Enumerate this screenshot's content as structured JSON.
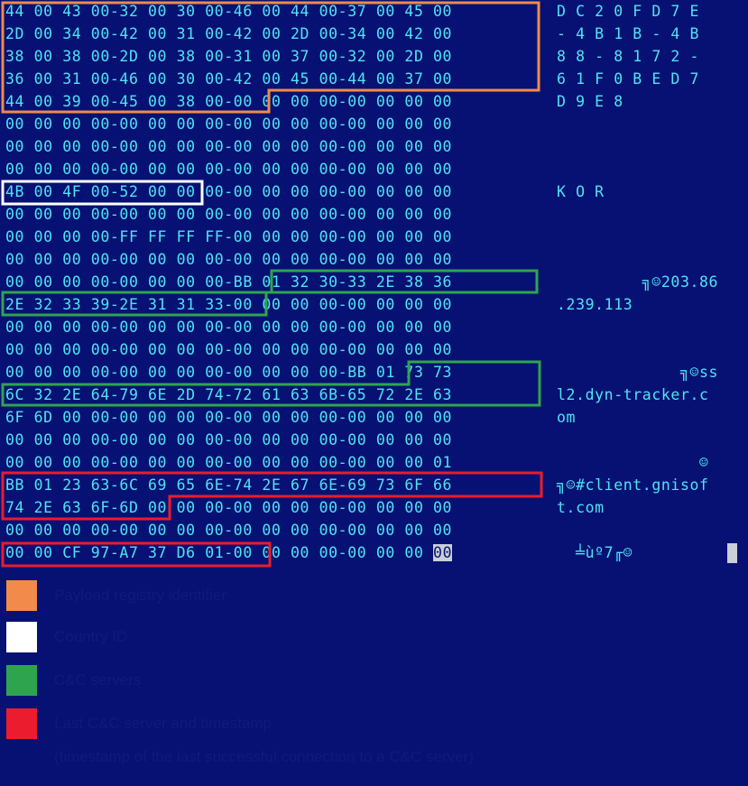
{
  "hex_rows": [
    {
      "hex": "44 00 43 00-32 00 30 00-46 00 44 00-37 00 45 00",
      "ascii": "D C 2 0 F D 7 E"
    },
    {
      "hex": "2D 00 34 00-42 00 31 00-42 00 2D 00-34 00 42 00",
      "ascii": "- 4 B 1 B - 4 B"
    },
    {
      "hex": "38 00 38 00-2D 00 38 00-31 00 37 00-32 00 2D 00",
      "ascii": "8 8 - 8 1 7 2 -"
    },
    {
      "hex": "36 00 31 00-46 00 30 00-42 00 45 00-44 00 37 00",
      "ascii": "6 1 F 0 B E D 7"
    },
    {
      "hex": "44 00 39 00-45 00 38 00-00 00 00 00-00 00 00 00",
      "ascii": "D 9 E 8"
    },
    {
      "hex": "00 00 00 00-00 00 00 00-00 00 00 00-00 00 00 00",
      "ascii": ""
    },
    {
      "hex": "00 00 00 00-00 00 00 00-00 00 00 00-00 00 00 00",
      "ascii": ""
    },
    {
      "hex": "00 00 00 00-00 00 00 00-00 00 00 00-00 00 00 00",
      "ascii": ""
    },
    {
      "hex": "4B 00 4F 00-52 00 00 00-00 00 00 00-00 00 00 00",
      "ascii": "K O R"
    },
    {
      "hex": "00 00 00 00-00 00 00 00-00 00 00 00-00 00 00 00",
      "ascii": ""
    },
    {
      "hex": "00 00 00 00-FF FF FF FF-00 00 00 00-00 00 00 00",
      "ascii": ""
    },
    {
      "hex": "00 00 00 00-00 00 00 00-00 00 00 00-00 00 00 00",
      "ascii": ""
    },
    {
      "hex": "00 00 00 00-00 00 00 00-BB 01 32 30-33 2E 38 36",
      "ascii": "         ╗☺203.86"
    },
    {
      "hex": "2E 32 33 39-2E 31 31 33-00 00 00 00-00 00 00 00",
      "ascii": ".239.113"
    },
    {
      "hex": "00 00 00 00-00 00 00 00-00 00 00 00-00 00 00 00",
      "ascii": ""
    },
    {
      "hex": "00 00 00 00-00 00 00 00-00 00 00 00-00 00 00 00",
      "ascii": ""
    },
    {
      "hex": "00 00 00 00-00 00 00 00-00 00 00 00-BB 01 73 73",
      "ascii": "             ╗☺ss"
    },
    {
      "hex": "6C 32 2E 64-79 6E 2D 74-72 61 63 6B-65 72 2E 63",
      "ascii": "l2.dyn-tracker.c"
    },
    {
      "hex": "6F 6D 00 00-00 00 00 00-00 00 00 00-00 00 00 00",
      "ascii": "om"
    },
    {
      "hex": "00 00 00 00-00 00 00 00-00 00 00 00-00 00 00 00",
      "ascii": ""
    },
    {
      "hex": "00 00 00 00-00 00 00 00-00 00 00 00-00 00 00 01",
      "ascii": "               ☺"
    },
    {
      "hex": "BB 01 23 63-6C 69 65 6E-74 2E 67 6E-69 73 6F 66",
      "ascii": "╗☺#client.gnisof"
    },
    {
      "hex": "74 2E 63 6F-6D 00 00 00-00 00 00 00-00 00 00 00",
      "ascii": "t.com"
    },
    {
      "hex": "00 00 00 00-00 00 00 00-00 00 00 00-00 00 00 00",
      "ascii": ""
    },
    {
      "hex": "00 00 CF 97-A7 37 D6 01-00 00 00 00-00 00 00 ",
      "ascii": "  ╧ùº7╓☺",
      "cursor_byte": "00"
    }
  ],
  "colors": {
    "background": "#071173",
    "text": "#4fe3f2",
    "orange": "#f28a4b",
    "white": "#ffffff",
    "green": "#2fa44f",
    "red": "#ea1c2d",
    "legend_text": "#12197a"
  },
  "legend": [
    {
      "color": "orange",
      "text": "Payload registry identifier"
    },
    {
      "color": "white",
      "text": "Country ID"
    },
    {
      "color": "green",
      "text": "C&C servers"
    },
    {
      "color": "red",
      "text": "Last C&C server and timestamp"
    }
  ],
  "legend_note": "(timestamp of the last successful connection to a C&C server)"
}
